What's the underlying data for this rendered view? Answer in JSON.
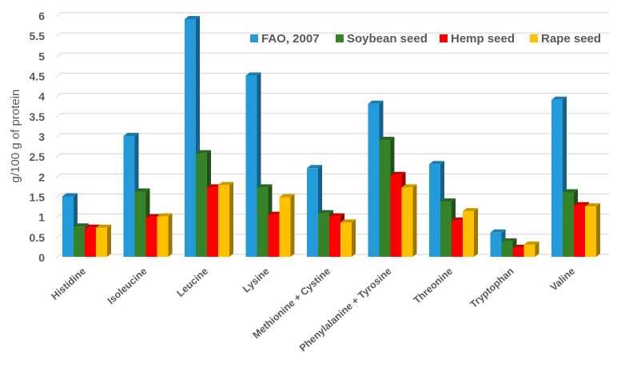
{
  "chart_data": {
    "type": "bar",
    "title": "",
    "xlabel": "",
    "ylabel": "g/100 g of protein",
    "ylim": [
      0,
      6
    ],
    "ytick_step": 0.5,
    "yticks": [
      "0",
      "0.5",
      "1",
      "1.5",
      "2",
      "2.5",
      "3",
      "3.5",
      "4",
      "4.5",
      "5",
      "5.5",
      "6"
    ],
    "grid": true,
    "legend_position": "top-right",
    "style": "3d-clustered-column",
    "categories": [
      "Histidine",
      "Isoleucine",
      "Leucine",
      "Lysine",
      "Methionine + Cystine",
      "Phenylalanine + Tyrosine",
      "Threonine",
      "Tryptophan",
      "Valine"
    ],
    "series": [
      {
        "name": "FAO, 2007",
        "color": "#239BDB",
        "values": [
          1.5,
          3.0,
          5.9,
          4.5,
          2.2,
          3.8,
          2.3,
          0.6,
          3.9
        ]
      },
      {
        "name": "Soybean seed",
        "color": "#358229",
        "values": [
          0.75,
          1.62,
          2.57,
          1.72,
          1.08,
          2.9,
          1.37,
          0.38,
          1.6
        ]
      },
      {
        "name": "Hemp seed",
        "color": "#FF0000",
        "values": [
          0.72,
          0.98,
          1.72,
          1.04,
          1.0,
          2.03,
          0.9,
          0.22,
          1.28
        ]
      },
      {
        "name": "Rape seed",
        "color": "#FFC000",
        "values": [
          0.72,
          1.0,
          1.78,
          1.48,
          0.85,
          1.72,
          1.13,
          0.3,
          1.25
        ]
      }
    ]
  }
}
